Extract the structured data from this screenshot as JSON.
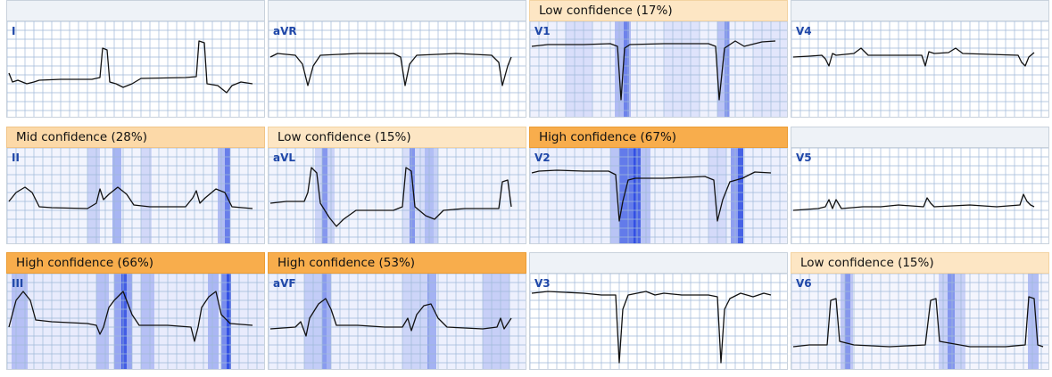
{
  "panels": [
    {
      "lead": "I",
      "header": "",
      "level": "none"
    },
    {
      "lead": "aVR",
      "header": "",
      "level": "none"
    },
    {
      "lead": "V1",
      "header": "Low confidence (17%)",
      "level": "low"
    },
    {
      "lead": "V4",
      "header": "",
      "level": "none"
    },
    {
      "lead": "II",
      "header": "Mid confidence (28%)",
      "level": "mid"
    },
    {
      "lead": "aVL",
      "header": "Low confidence (15%)",
      "level": "low"
    },
    {
      "lead": "V2",
      "header": "High confidence (67%)",
      "level": "high"
    },
    {
      "lead": "V5",
      "header": "",
      "level": "none"
    },
    {
      "lead": "III",
      "header": "High confidence (66%)",
      "level": "high"
    },
    {
      "lead": "aVF",
      "header": "High confidence (53%)",
      "level": "high"
    },
    {
      "lead": "V3",
      "header": "",
      "level": "none"
    },
    {
      "lead": "V6",
      "header": "Low confidence (15%)",
      "level": "low"
    }
  ],
  "colors": {
    "grid": "#9fb9d8",
    "trace": "#111111",
    "heat": "#1e3fe0",
    "lead_label": "#1f47a8",
    "low": "#fde6c4",
    "mid": "#fcd9a8",
    "high": "#f8ad4c"
  }
}
